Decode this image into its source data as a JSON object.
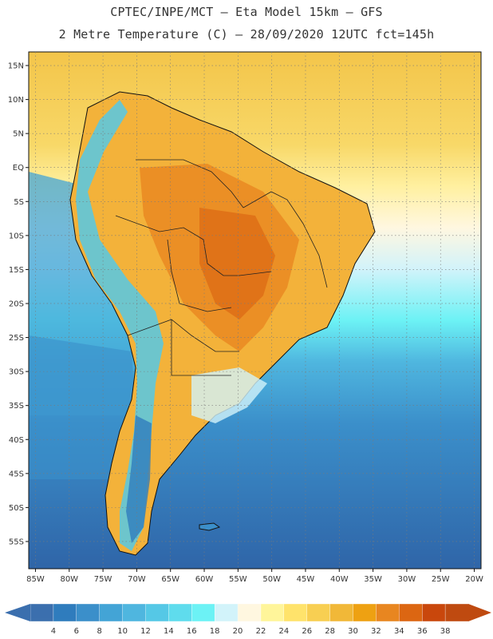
{
  "header": {
    "title_line1": "CPTEC/INPE/MCT –  Eta Model 15km – GFS",
    "title_line2": "2 Metre Temperature (C) – 28/09/2020 12UTC fct=145h"
  },
  "map": {
    "lon_range": [
      -86,
      -19
    ],
    "lat_range": [
      -59,
      17
    ],
    "lat_labels": [
      {
        "lat": 15,
        "text": "15N"
      },
      {
        "lat": 10,
        "text": "10N"
      },
      {
        "lat": 5,
        "text": "5N"
      },
      {
        "lat": 0,
        "text": "EQ"
      },
      {
        "lat": -5,
        "text": "5S"
      },
      {
        "lat": -10,
        "text": "10S"
      },
      {
        "lat": -15,
        "text": "15S"
      },
      {
        "lat": -20,
        "text": "20S"
      },
      {
        "lat": -25,
        "text": "25S"
      },
      {
        "lat": -30,
        "text": "30S"
      },
      {
        "lat": -35,
        "text": "35S"
      },
      {
        "lat": -40,
        "text": "40S"
      },
      {
        "lat": -45,
        "text": "45S"
      },
      {
        "lat": -50,
        "text": "50S"
      },
      {
        "lat": -55,
        "text": "55S"
      }
    ],
    "lon_labels": [
      {
        "lon": -85,
        "text": "85W"
      },
      {
        "lon": -80,
        "text": "80W"
      },
      {
        "lon": -75,
        "text": "75W"
      },
      {
        "lon": -70,
        "text": "70W"
      },
      {
        "lon": -65,
        "text": "65W"
      },
      {
        "lon": -60,
        "text": "60W"
      },
      {
        "lon": -55,
        "text": "55W"
      },
      {
        "lon": -50,
        "text": "50W"
      },
      {
        "lon": -45,
        "text": "45W"
      },
      {
        "lon": -40,
        "text": "40W"
      },
      {
        "lon": -35,
        "text": "35W"
      },
      {
        "lon": -30,
        "text": "30W"
      },
      {
        "lon": -25,
        "text": "25W"
      },
      {
        "lon": -20,
        "text": "20W"
      }
    ]
  },
  "legend": {
    "unit": "C",
    "labels": [
      "4",
      "6",
      "8",
      "10",
      "12",
      "14",
      "16",
      "18",
      "20",
      "22",
      "24",
      "26",
      "28",
      "30",
      "32",
      "34",
      "36",
      "38"
    ],
    "colors": [
      "#3b6fae",
      "#2f7cbd",
      "#3b8fca",
      "#43a4d6",
      "#4fb6df",
      "#55c8e6",
      "#5fdced",
      "#6cf2f5",
      "#d2f3fa",
      "#fff7e0",
      "#fff59a",
      "#ffe36b",
      "#f8cf52",
      "#f1b838",
      "#eea112",
      "#e88620",
      "#dc6612",
      "#c9470c",
      "#bf4a10"
    ],
    "under_color": "#3b6fae",
    "over_color": "#bf4a10"
  }
}
